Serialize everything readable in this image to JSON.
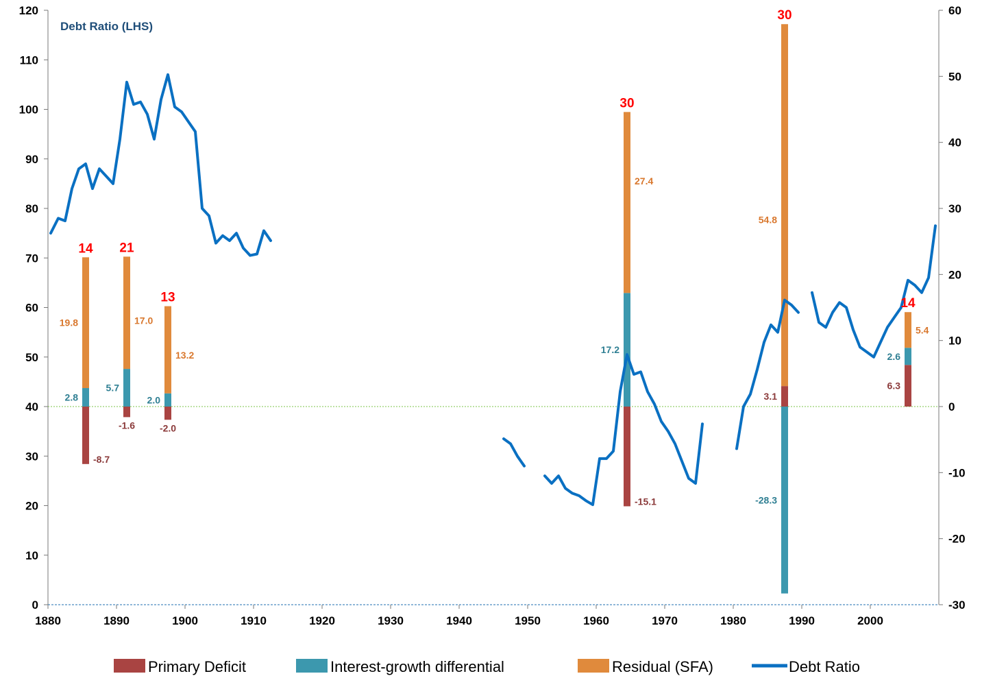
{
  "chart_data": {
    "type": "bar",
    "annotation": "Debt Ratio (LHS)",
    "x_axis": {
      "range": [
        1880,
        2010
      ],
      "ticks": [
        1880,
        1890,
        1900,
        1910,
        1920,
        1930,
        1940,
        1950,
        1960,
        1970,
        1980,
        1990,
        2000
      ]
    },
    "y_left": {
      "range": [
        0,
        120
      ],
      "ticks": [
        0,
        10,
        20,
        30,
        40,
        50,
        60,
        70,
        80,
        90,
        100,
        110,
        120
      ]
    },
    "y_right": {
      "range": [
        -30,
        60
      ],
      "ticks": [
        -30,
        -20,
        -10,
        0,
        10,
        20,
        30,
        40,
        50,
        60
      ]
    },
    "colors": {
      "primary_deficit": "#a94442",
      "interest_growth": "#3c98ae",
      "residual": "#e08a3c",
      "debt_ratio": "#0a70c2",
      "total_label": "#ff0000",
      "zero_line": "#7dc64a",
      "annotation": "#1f4e79"
    },
    "legend": [
      {
        "key": "primary_deficit",
        "label": "Primary Deficit",
        "kind": "bar"
      },
      {
        "key": "interest_growth",
        "label": "Interest-growth differential",
        "kind": "bar"
      },
      {
        "key": "residual",
        "label": "Residual (SFA)",
        "kind": "bar"
      },
      {
        "key": "debt_ratio",
        "label": "Debt Ratio",
        "kind": "line"
      }
    ],
    "bars": [
      {
        "year": 1885.5,
        "total": "14",
        "primary_deficit": -8.7,
        "interest_growth": 2.8,
        "residual": 19.8,
        "labels": {
          "primary_deficit": "-8.7",
          "interest_growth": "2.8",
          "residual": "19.8"
        }
      },
      {
        "year": 1891.5,
        "total": "21",
        "primary_deficit": -1.6,
        "interest_growth": 5.7,
        "residual": 17.0,
        "labels": {
          "primary_deficit": "-1.6",
          "interest_growth": "5.7",
          "residual": "17.0"
        }
      },
      {
        "year": 1897.5,
        "total": "13",
        "primary_deficit": -2.0,
        "interest_growth": 2.0,
        "residual": 13.2,
        "labels": {
          "primary_deficit": "-2.0",
          "interest_growth": "2.0",
          "residual": "13.2"
        }
      },
      {
        "year": 1964.5,
        "total": "30",
        "primary_deficit": -15.1,
        "interest_growth": 17.2,
        "residual": 27.4,
        "labels": {
          "primary_deficit": "-15.1",
          "interest_growth": "17.2",
          "residual": "27.4"
        }
      },
      {
        "year": 1987.5,
        "total": "30",
        "primary_deficit": 3.1,
        "interest_growth": -28.3,
        "residual": 54.8,
        "labels": {
          "primary_deficit": "3.1",
          "interest_growth": "-28.3",
          "residual": "54.8"
        }
      },
      {
        "year": 2005.5,
        "total": "14",
        "primary_deficit": 6.3,
        "interest_growth": 2.6,
        "residual": 5.4,
        "labels": {
          "primary_deficit": "6.3",
          "interest_growth": "2.6",
          "residual": "5.4"
        }
      }
    ],
    "debt_ratio_segments": [
      [
        [
          1880.4,
          75
        ],
        [
          1881.5,
          78
        ],
        [
          1882.5,
          77.5
        ],
        [
          1883.5,
          84
        ],
        [
          1884.5,
          88
        ],
        [
          1885.5,
          89
        ],
        [
          1886.5,
          84
        ],
        [
          1887.5,
          88
        ],
        [
          1888.5,
          86.5
        ],
        [
          1889.5,
          85
        ],
        [
          1890.5,
          94
        ],
        [
          1891.5,
          105.5
        ],
        [
          1892.5,
          101
        ],
        [
          1893.5,
          101.5
        ],
        [
          1894.5,
          99
        ],
        [
          1895.5,
          94
        ],
        [
          1896.5,
          102
        ],
        [
          1897.5,
          107
        ],
        [
          1898.5,
          100.5
        ],
        [
          1899.5,
          99.5
        ],
        [
          1900.5,
          97.5
        ],
        [
          1901.5,
          95.5
        ],
        [
          1902.5,
          80
        ],
        [
          1903.5,
          78.5
        ],
        [
          1904.5,
          73
        ],
        [
          1905.5,
          74.5
        ],
        [
          1906.5,
          73.5
        ],
        [
          1907.5,
          75
        ],
        [
          1908.5,
          72
        ],
        [
          1909.5,
          70.5
        ],
        [
          1910.5,
          70.8
        ],
        [
          1911.5,
          75.5
        ],
        [
          1912.5,
          73.5
        ]
      ],
      [
        [
          1946.5,
          33.5
        ],
        [
          1947.5,
          32.5
        ],
        [
          1948.5,
          30
        ],
        [
          1949.5,
          28
        ]
      ],
      [
        [
          1952.5,
          26
        ],
        [
          1953.5,
          24.5
        ],
        [
          1954.5,
          26
        ],
        [
          1955.5,
          23.5
        ],
        [
          1956.5,
          22.5
        ],
        [
          1957.5,
          22
        ],
        [
          1958.5,
          21
        ],
        [
          1959.5,
          20.2
        ],
        [
          1960.5,
          29.5
        ],
        [
          1961.5,
          29.5
        ],
        [
          1962.5,
          31
        ],
        [
          1963.5,
          43
        ],
        [
          1964.5,
          50.5
        ],
        [
          1965.5,
          46.5
        ],
        [
          1966.5,
          47
        ],
        [
          1967.5,
          43
        ],
        [
          1968.5,
          40.5
        ],
        [
          1969.5,
          37
        ],
        [
          1970.5,
          35
        ],
        [
          1971.5,
          32.5
        ],
        [
          1972.5,
          29
        ],
        [
          1973.5,
          25.5
        ],
        [
          1974.5,
          24.5
        ],
        [
          1975.5,
          36.5
        ]
      ],
      [
        [
          1980.5,
          31.5
        ],
        [
          1981.5,
          40
        ],
        [
          1982.5,
          42.5
        ],
        [
          1983.5,
          47.5
        ],
        [
          1984.5,
          53
        ],
        [
          1985.5,
          56.5
        ],
        [
          1986.5,
          55
        ],
        [
          1987.5,
          61.5
        ],
        [
          1988.5,
          60.5
        ],
        [
          1989.5,
          59
        ]
      ],
      [
        [
          1991.5,
          63
        ],
        [
          1992.5,
          57
        ],
        [
          1993.5,
          56
        ],
        [
          1994.5,
          59
        ],
        [
          1995.5,
          61
        ],
        [
          1996.5,
          60
        ],
        [
          1997.5,
          55.5
        ],
        [
          1998.5,
          52
        ],
        [
          1999.5,
          51
        ],
        [
          2000.5,
          50
        ],
        [
          2001.5,
          53
        ],
        [
          2002.5,
          56
        ],
        [
          2003.5,
          58
        ],
        [
          2004.5,
          60
        ],
        [
          2005.5,
          65.5
        ],
        [
          2006.5,
          64.5
        ],
        [
          2007.5,
          63
        ],
        [
          2008.5,
          66
        ],
        [
          2009.5,
          76.5
        ]
      ]
    ]
  }
}
